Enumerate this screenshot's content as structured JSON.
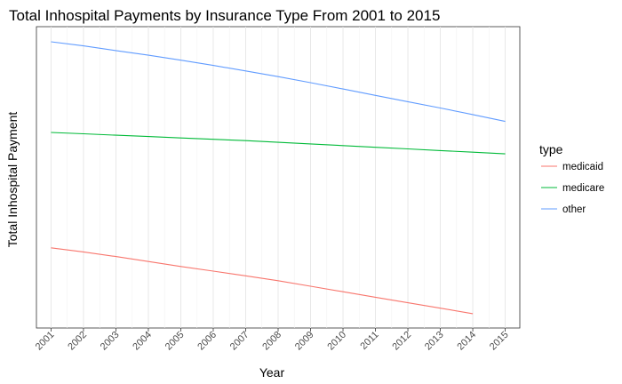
{
  "chart_data": {
    "type": "line",
    "title": "Total Inhospital Payments by Insurance Type From 2001 to 2015",
    "xlabel": "Year",
    "ylabel": "Total Inhospital Payment",
    "x": [
      "2001",
      "2002",
      "2003",
      "2004",
      "2005",
      "2006",
      "2007",
      "2008",
      "2009",
      "2010",
      "2011",
      "2012",
      "2013",
      "2014",
      "2015"
    ],
    "xlim": [
      2000.55,
      2015.45
    ],
    "ylim": [
      0.0,
      1.0
    ],
    "y_ticks_shown": false,
    "grid": "vertical",
    "legend": {
      "title": "type",
      "position": "right"
    },
    "series": [
      {
        "name": "medicaid",
        "color": "#F8766D",
        "x": [
          2001,
          2002,
          2003,
          2004,
          2005,
          2006,
          2007,
          2008,
          2009,
          2010,
          2011,
          2012,
          2013,
          2014
        ],
        "values": [
          0.25,
          0.235,
          0.218,
          0.2,
          0.182,
          0.165,
          0.148,
          0.13,
          0.11,
          0.09,
          0.07,
          0.05,
          0.03,
          0.01
        ]
      },
      {
        "name": "medicare",
        "color": "#00BA38",
        "x": [
          2001,
          2002,
          2003,
          2004,
          2005,
          2006,
          2007,
          2008,
          2009,
          2010,
          2011,
          2012,
          2013,
          2014,
          2015
        ],
        "values": [
          0.67,
          0.665,
          0.66,
          0.655,
          0.65,
          0.645,
          0.64,
          0.634,
          0.628,
          0.622,
          0.616,
          0.61,
          0.604,
          0.598,
          0.592
        ]
      },
      {
        "name": "other",
        "color": "#619CFF",
        "x": [
          2001,
          2002,
          2003,
          2004,
          2005,
          2006,
          2007,
          2008,
          2009,
          2010,
          2011,
          2012,
          2013,
          2014,
          2015
        ],
        "values": [
          1.0,
          0.985,
          0.968,
          0.951,
          0.933,
          0.914,
          0.894,
          0.873,
          0.851,
          0.828,
          0.805,
          0.782,
          0.759,
          0.735,
          0.71
        ]
      }
    ]
  }
}
